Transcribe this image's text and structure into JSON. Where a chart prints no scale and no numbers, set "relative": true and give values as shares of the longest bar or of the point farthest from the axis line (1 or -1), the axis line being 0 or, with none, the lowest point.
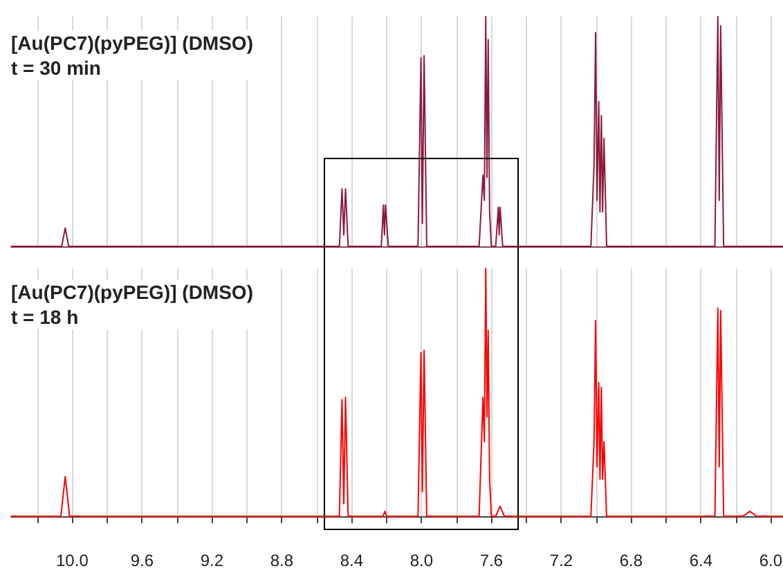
{
  "chart_data": [
    {
      "type": "line",
      "title": "[Au(PC7)(pyPEG)] (DMSO)",
      "subtitle": "t = 30 min",
      "relative": true,
      "grid": "x",
      "tick_labels": false,
      "xlim": [
        10.35,
        5.93
      ],
      "xticks": [
        {
          "value": 10.2,
          "label": null
        },
        {
          "value": 10.0,
          "label": null
        },
        {
          "value": 9.8,
          "label": null
        },
        {
          "value": 9.6,
          "label": null
        },
        {
          "value": 9.4,
          "label": null
        },
        {
          "value": 9.2,
          "label": null
        },
        {
          "value": 9.0,
          "label": null
        },
        {
          "value": 8.8,
          "label": null
        },
        {
          "value": 8.6,
          "label": null
        },
        {
          "value": 8.4,
          "label": null
        },
        {
          "value": 8.2,
          "label": null
        },
        {
          "value": 8.0,
          "label": null
        },
        {
          "value": 7.8,
          "label": null
        },
        {
          "value": 7.6,
          "label": null
        },
        {
          "value": 7.4,
          "label": null
        },
        {
          "value": 7.2,
          "label": null
        },
        {
          "value": 7.0,
          "label": null
        },
        {
          "value": 6.8,
          "label": null
        },
        {
          "value": 6.6,
          "label": null
        },
        {
          "value": 6.4,
          "label": null
        },
        {
          "value": 6.2,
          "label": null
        },
        {
          "value": 6.0,
          "label": null
        }
      ],
      "series": [
        {
          "color": "#8b1a3a",
          "x": [
            10.35,
            10.06,
            10.04,
            10.02,
            8.47,
            8.455,
            8.445,
            8.435,
            8.42,
            8.23,
            8.218,
            8.212,
            8.206,
            8.19,
            8.02,
            8.003,
            7.995,
            7.985,
            7.97,
            7.67,
            7.648,
            7.64,
            7.632,
            7.625,
            7.618,
            7.61,
            7.6,
            7.575,
            7.56,
            7.555,
            7.55,
            7.535,
            7.03,
            7.012,
            7.003,
            6.995,
            6.985,
            6.978,
            6.97,
            6.963,
            6.955,
            6.94,
            6.32,
            6.303,
            6.295,
            6.287,
            6.27,
            5.93
          ],
          "values": [
            0,
            0,
            0.08,
            0,
            0,
            0.25,
            0.05,
            0.25,
            0,
            0,
            0.18,
            0.05,
            0.18,
            0,
            0,
            0.82,
            0.1,
            0.83,
            0,
            0,
            0.31,
            0.2,
            1.0,
            0.3,
            0.9,
            0.15,
            0,
            0,
            0.17,
            0.05,
            0.17,
            0,
            0,
            0.35,
            0.93,
            0.2,
            0.63,
            0.15,
            0.57,
            0.15,
            0.47,
            0,
            0,
            1.0,
            0.2,
            0.96,
            0,
            0
          ]
        }
      ]
    },
    {
      "type": "line",
      "title": "[Au(PC7)(pyPEG)] (DMSO)",
      "subtitle": "t = 18 h",
      "relative": true,
      "grid": "x",
      "tick_labels": "x",
      "xlim": [
        10.35,
        5.93
      ],
      "xticks": [
        {
          "value": 10.2,
          "label": null
        },
        {
          "value": 10.0,
          "label": "10.0"
        },
        {
          "value": 9.8,
          "label": null
        },
        9.6,
        {
          "value": 9.4,
          "label": null
        },
        9.2,
        {
          "value": 9.0,
          "label": null
        },
        8.8,
        {
          "value": 8.6,
          "label": null
        },
        8.4,
        {
          "value": 8.2,
          "label": null
        },
        {
          "value": 8.0,
          "label": "8.0"
        },
        {
          "value": 7.8,
          "label": null
        },
        7.6,
        {
          "value": 7.4,
          "label": null
        },
        7.2,
        {
          "value": 7.0,
          "label": null
        },
        6.8,
        {
          "value": 6.6,
          "label": null
        },
        6.4,
        {
          "value": 6.2,
          "label": null
        },
        {
          "value": 6.0,
          "label": "6.0"
        }
      ],
      "series": [
        {
          "color": "#ff0000",
          "x": [
            10.35,
            10.065,
            10.04,
            10.015,
            8.47,
            8.455,
            8.445,
            8.435,
            8.42,
            8.22,
            8.21,
            8.2,
            8.02,
            8.003,
            7.995,
            7.985,
            7.97,
            7.67,
            7.648,
            7.64,
            7.632,
            7.625,
            7.618,
            7.61,
            7.6,
            7.575,
            7.55,
            7.525,
            7.03,
            7.012,
            7.003,
            6.995,
            6.985,
            6.978,
            6.97,
            6.963,
            6.955,
            6.94,
            6.32,
            6.303,
            6.295,
            6.287,
            6.27,
            6.16,
            6.12,
            6.08,
            5.93
          ],
          "values": [
            0,
            0,
            0.16,
            0,
            0,
            0.47,
            0.05,
            0.48,
            0,
            0,
            0.02,
            0,
            0,
            0.66,
            0.1,
            0.67,
            0,
            0,
            0.48,
            0.3,
            1.0,
            0.4,
            0.75,
            0.15,
            0,
            0,
            0.04,
            0,
            0,
            0.3,
            0.79,
            0.2,
            0.54,
            0.15,
            0.52,
            0.15,
            0.3,
            0,
            0,
            0.84,
            0.2,
            0.83,
            0,
            0,
            0.02,
            0,
            0
          ]
        }
      ]
    }
  ]
}
